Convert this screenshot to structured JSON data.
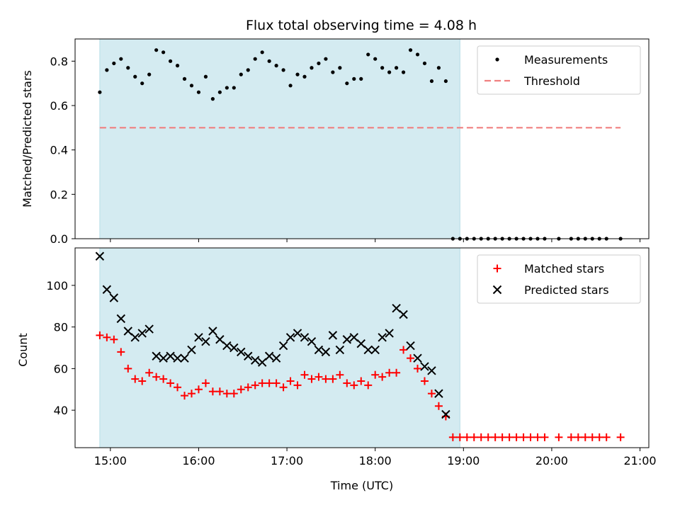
{
  "chart_data": [
    {
      "type": "scatter",
      "title": "Flux total observing time = 4.08 h",
      "xlabel": "",
      "ylabel": "Matched/Predicted stars",
      "xlim": [
        14.6,
        21.1
      ],
      "ylim": [
        0.0,
        0.9
      ],
      "yticks": [
        0.0,
        0.2,
        0.4,
        0.6,
        0.8
      ],
      "ytick_labels": [
        "0.0",
        "0.2",
        "0.4",
        "0.6",
        "0.8"
      ],
      "xticks": [
        15,
        16,
        17,
        18,
        19,
        20,
        21
      ],
      "grid": false,
      "legend_position": "top-right",
      "shaded_interval": {
        "x_start": 14.88,
        "x_end": 18.96,
        "color": "#d4ebf1"
      },
      "series": [
        {
          "name": "Measurements",
          "marker": "dot",
          "color": "#000000",
          "x": [
            14.88,
            14.96,
            15.04,
            15.12,
            15.2,
            15.28,
            15.36,
            15.44,
            15.52,
            15.6,
            15.68,
            15.76,
            15.84,
            15.92,
            16.0,
            16.08,
            16.16,
            16.24,
            16.32,
            16.4,
            16.48,
            16.56,
            16.64,
            16.72,
            16.8,
            16.88,
            16.96,
            17.04,
            17.12,
            17.2,
            17.28,
            17.36,
            17.44,
            17.52,
            17.6,
            17.68,
            17.76,
            17.84,
            17.92,
            18.0,
            18.08,
            18.16,
            18.24,
            18.32,
            18.4,
            18.48,
            18.56,
            18.64,
            18.72,
            18.8,
            18.88,
            18.96,
            19.04,
            19.12,
            19.2,
            19.28,
            19.36,
            19.44,
            19.52,
            19.6,
            19.68,
            19.76,
            19.84,
            19.92,
            20.08,
            20.22,
            20.3,
            20.38,
            20.46,
            20.54,
            20.62,
            20.78
          ],
          "y": [
            0.66,
            0.76,
            0.79,
            0.81,
            0.77,
            0.73,
            0.7,
            0.74,
            0.85,
            0.84,
            0.8,
            0.78,
            0.72,
            0.69,
            0.66,
            0.73,
            0.63,
            0.66,
            0.68,
            0.68,
            0.74,
            0.76,
            0.81,
            0.84,
            0.8,
            0.78,
            0.76,
            0.69,
            0.74,
            0.73,
            0.77,
            0.79,
            0.81,
            0.75,
            0.77,
            0.7,
            0.72,
            0.72,
            0.83,
            0.81,
            0.77,
            0.75,
            0.77,
            0.75,
            0.85,
            0.83,
            0.79,
            0.71,
            0.77,
            0.71,
            0.0,
            0.0,
            0.0,
            0.0,
            0.0,
            0.0,
            0.0,
            0.0,
            0.0,
            0.0,
            0.0,
            0.0,
            0.0,
            0.0,
            0.0,
            0.0,
            0.0,
            0.0,
            0.0,
            0.0,
            0.0,
            0.0
          ]
        },
        {
          "name": "Threshold",
          "marker": "dashed-line",
          "color": "#f08080",
          "x": [
            14.88,
            20.78
          ],
          "y": [
            0.5,
            0.5
          ]
        }
      ]
    },
    {
      "type": "scatter",
      "title": "",
      "xlabel": "Time (UTC)",
      "ylabel": "Count",
      "xlim": [
        14.6,
        21.1
      ],
      "ylim": [
        22,
        118
      ],
      "yticks": [
        40,
        60,
        80,
        100
      ],
      "ytick_labels": [
        "40",
        "60",
        "80",
        "100"
      ],
      "xticks": [
        15,
        16,
        17,
        18,
        19,
        20,
        21
      ],
      "xtick_labels": [
        "15:00",
        "16:00",
        "17:00",
        "18:00",
        "19:00",
        "20:00",
        "21:00"
      ],
      "grid": false,
      "legend_position": "top-right",
      "shaded_interval": {
        "x_start": 14.88,
        "x_end": 18.96,
        "color": "#d4ebf1"
      },
      "series": [
        {
          "name": "Matched stars",
          "marker": "plus",
          "color": "#ff0000",
          "x": [
            14.88,
            14.96,
            15.04,
            15.12,
            15.2,
            15.28,
            15.36,
            15.44,
            15.52,
            15.6,
            15.68,
            15.76,
            15.84,
            15.92,
            16.0,
            16.08,
            16.16,
            16.24,
            16.32,
            16.4,
            16.48,
            16.56,
            16.64,
            16.72,
            16.8,
            16.88,
            16.96,
            17.04,
            17.12,
            17.2,
            17.28,
            17.36,
            17.44,
            17.52,
            17.6,
            17.68,
            17.76,
            17.84,
            17.92,
            18.0,
            18.08,
            18.16,
            18.24,
            18.32,
            18.4,
            18.48,
            18.56,
            18.64,
            18.72,
            18.8,
            18.88,
            18.96,
            19.04,
            19.12,
            19.2,
            19.28,
            19.36,
            19.44,
            19.52,
            19.6,
            19.68,
            19.76,
            19.84,
            19.92,
            20.08,
            20.22,
            20.3,
            20.38,
            20.46,
            20.54,
            20.62,
            20.78
          ],
          "y": [
            76,
            75,
            74,
            68,
            60,
            55,
            54,
            58,
            56,
            55,
            53,
            51,
            47,
            48,
            50,
            53,
            49,
            49,
            48,
            48,
            50,
            51,
            52,
            53,
            53,
            53,
            51,
            54,
            52,
            57,
            55,
            56,
            55,
            55,
            57,
            53,
            52,
            54,
            52,
            57,
            56,
            58,
            58,
            69,
            65,
            60,
            54,
            48,
            42,
            37,
            27,
            27,
            27,
            27,
            27,
            27,
            27,
            27,
            27,
            27,
            27,
            27,
            27,
            27,
            27,
            27,
            27,
            27,
            27,
            27,
            27,
            27
          ]
        },
        {
          "name": "Predicted stars",
          "marker": "x",
          "color": "#000000",
          "x": [
            14.88,
            14.96,
            15.04,
            15.12,
            15.2,
            15.28,
            15.36,
            15.44,
            15.52,
            15.6,
            15.68,
            15.76,
            15.84,
            15.92,
            16.0,
            16.08,
            16.16,
            16.24,
            16.32,
            16.4,
            16.48,
            16.56,
            16.64,
            16.72,
            16.8,
            16.88,
            16.96,
            17.04,
            17.12,
            17.2,
            17.28,
            17.36,
            17.44,
            17.52,
            17.6,
            17.68,
            17.76,
            17.84,
            17.92,
            18.0,
            18.08,
            18.16,
            18.24,
            18.32,
            18.4,
            18.48,
            18.56,
            18.64,
            18.72,
            18.8,
            18.88,
            18.96
          ],
          "y": [
            114,
            98,
            94,
            84,
            78,
            75,
            77,
            79,
            66,
            65,
            66,
            65,
            65,
            69,
            75,
            73,
            78,
            74,
            71,
            70,
            68,
            66,
            64,
            63,
            66,
            65,
            71,
            75,
            77,
            75,
            73,
            69,
            68,
            76,
            69,
            74,
            75,
            72,
            69,
            69,
            75,
            77,
            89,
            86,
            71,
            65,
            61,
            59,
            48,
            38,
            null,
            null
          ]
        }
      ]
    }
  ]
}
